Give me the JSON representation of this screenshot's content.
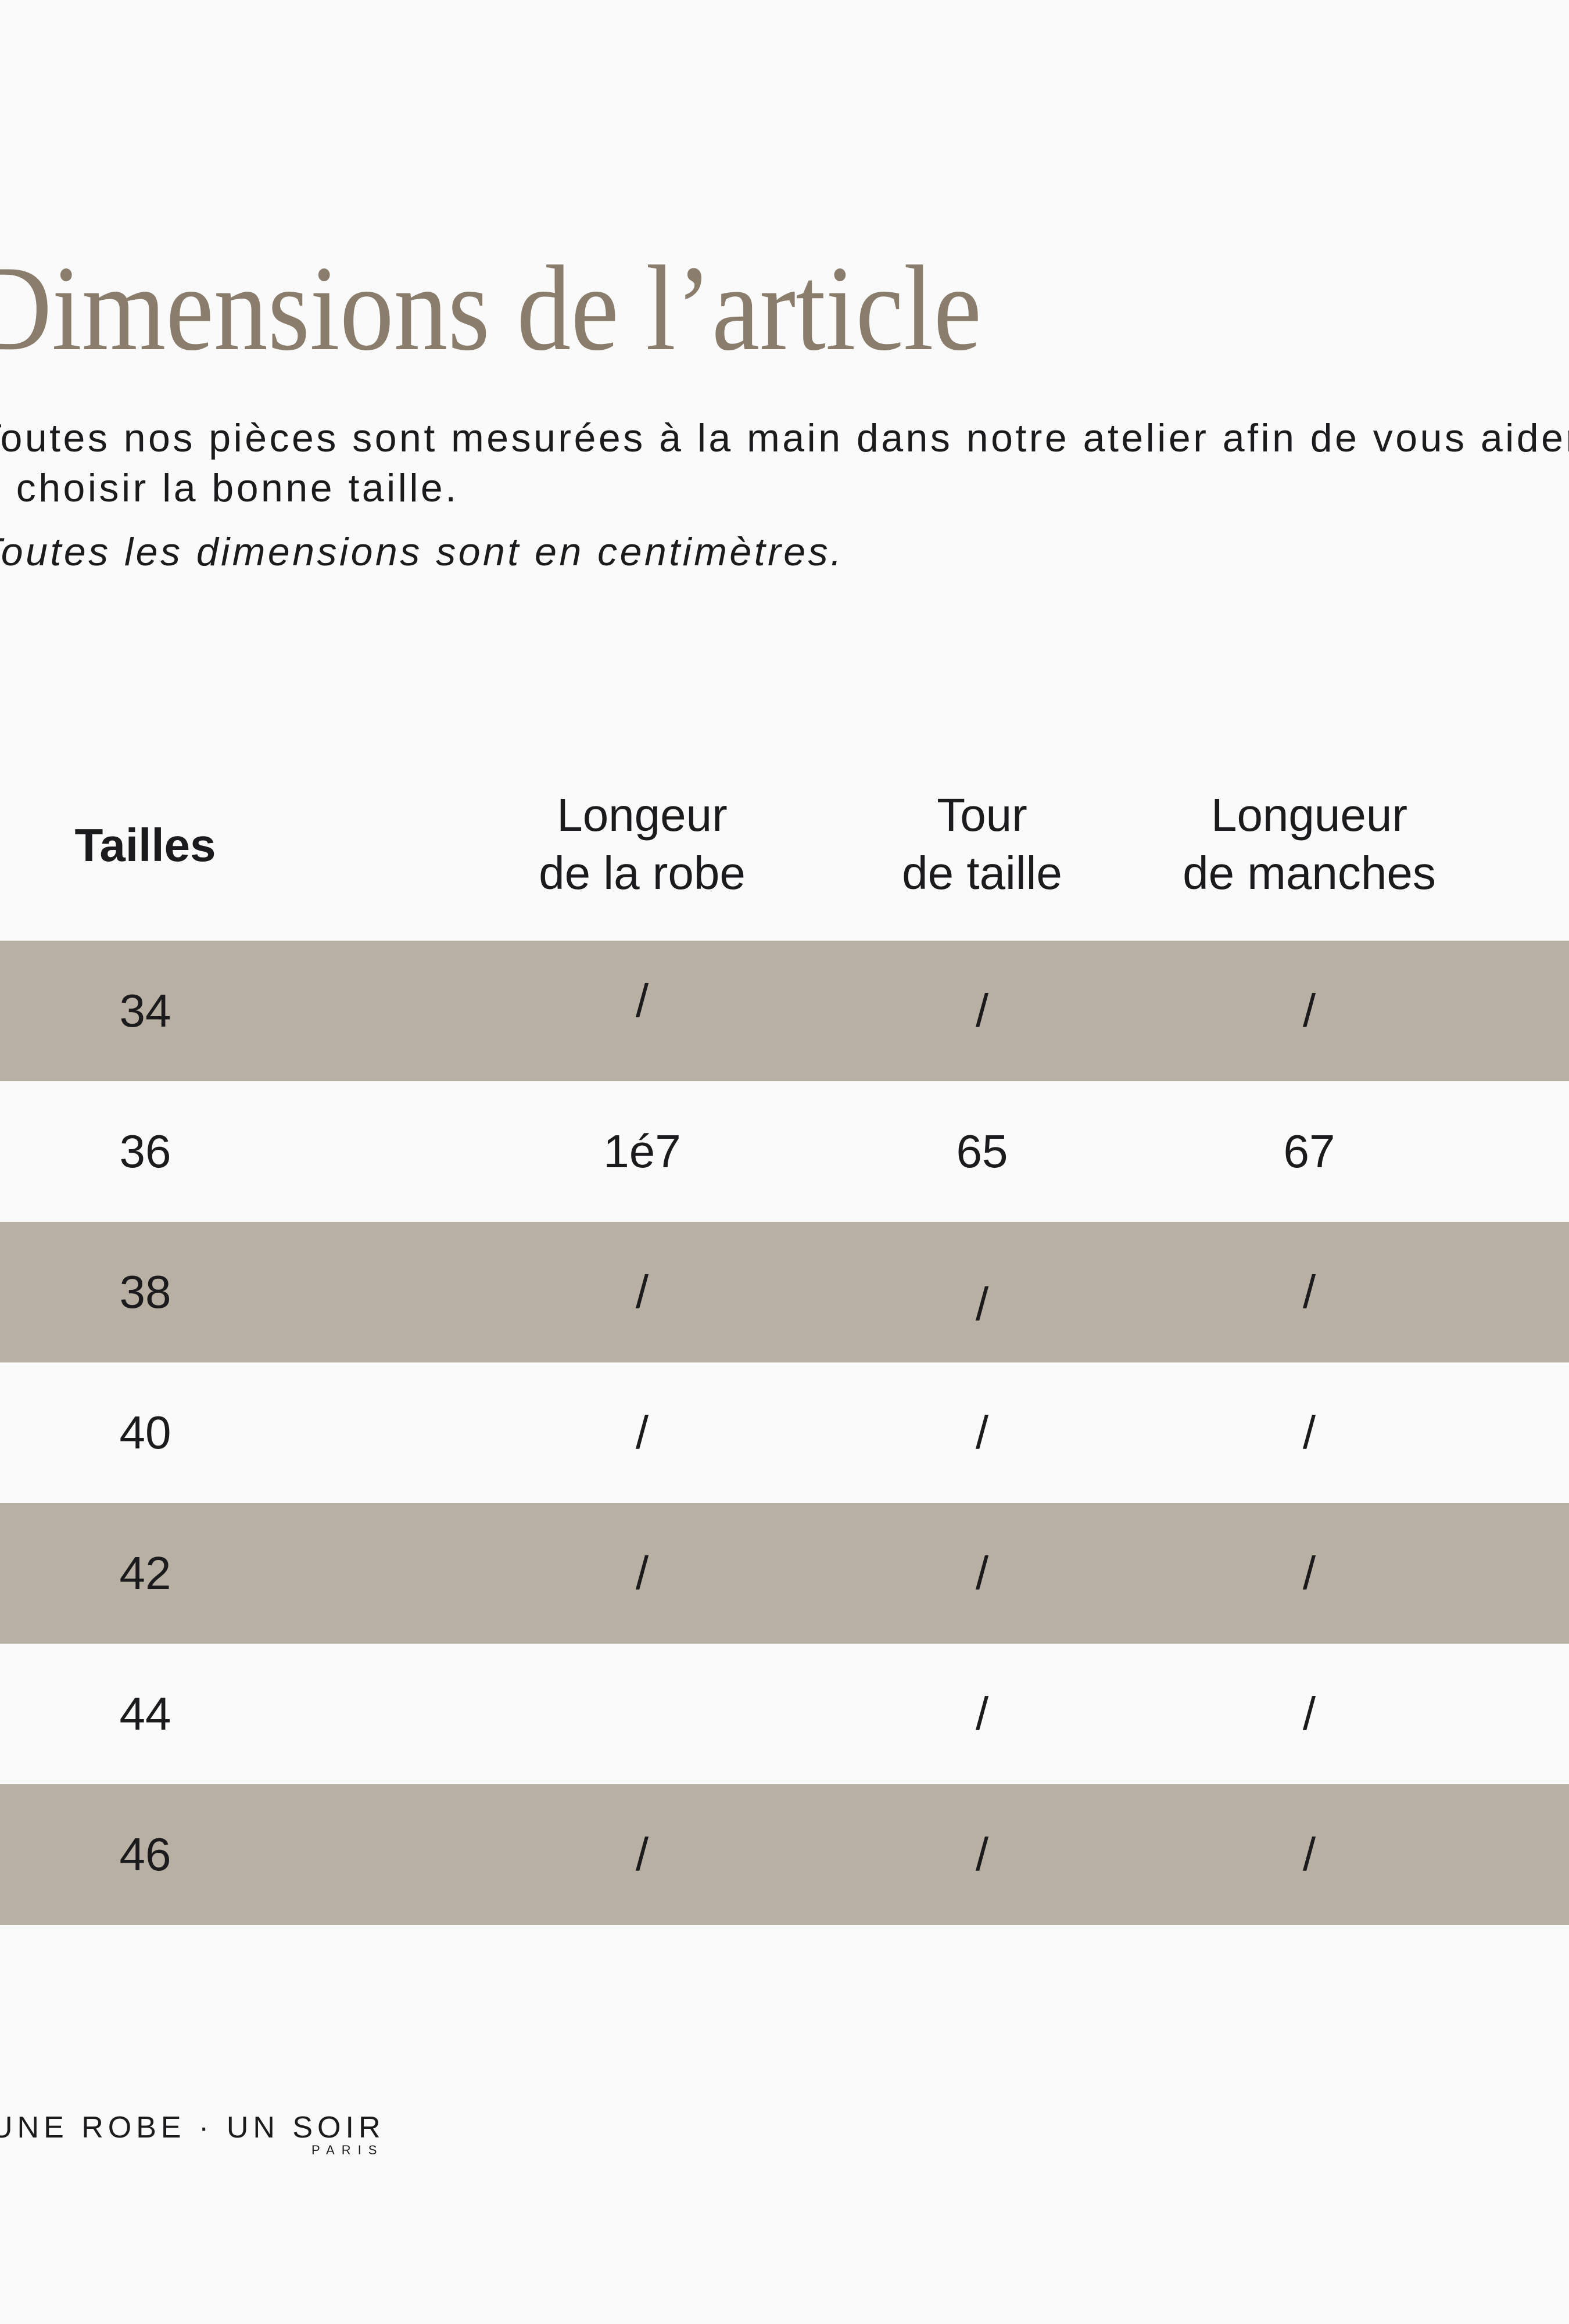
{
  "page": {
    "title": "Dimensions de l’article",
    "description": {
      "line1": "Toutes nos pièces sont mesurées à la main dans notre atelier afin de vous aider",
      "line2": "à choisir la bonne taille.",
      "note": "Toutes les dimensions sont en centimètres."
    },
    "colors": {
      "background": "#fafafa",
      "title": "#8a7d6b",
      "text": "#1b1b1d",
      "row_highlight": "#b8b0a3"
    }
  },
  "size_table": {
    "columns": [
      {
        "line1": "Tailles",
        "line2": ""
      },
      {
        "line1": "Longeur",
        "line2": "de la robe"
      },
      {
        "line1": "Tour",
        "line2": "de taille"
      },
      {
        "line1": "Longueur",
        "line2": "de manches"
      }
    ],
    "rows": [
      {
        "cells": [
          "34",
          "/",
          "/",
          "/"
        ]
      },
      {
        "cells": [
          "36",
          "1é7",
          "65",
          "67"
        ]
      },
      {
        "cells": [
          "38",
          "/",
          "/",
          "/"
        ]
      },
      {
        "cells": [
          "40",
          "/",
          "/",
          "/"
        ]
      },
      {
        "cells": [
          "42",
          "/",
          "/",
          "/"
        ]
      },
      {
        "cells": [
          "44",
          "",
          "/",
          "/"
        ]
      },
      {
        "cells": [
          "46",
          "/",
          "/",
          "/"
        ]
      }
    ]
  },
  "footer": {
    "logo": "UNE ROBE · UN SOIR",
    "logo_sub": "PARIS"
  }
}
